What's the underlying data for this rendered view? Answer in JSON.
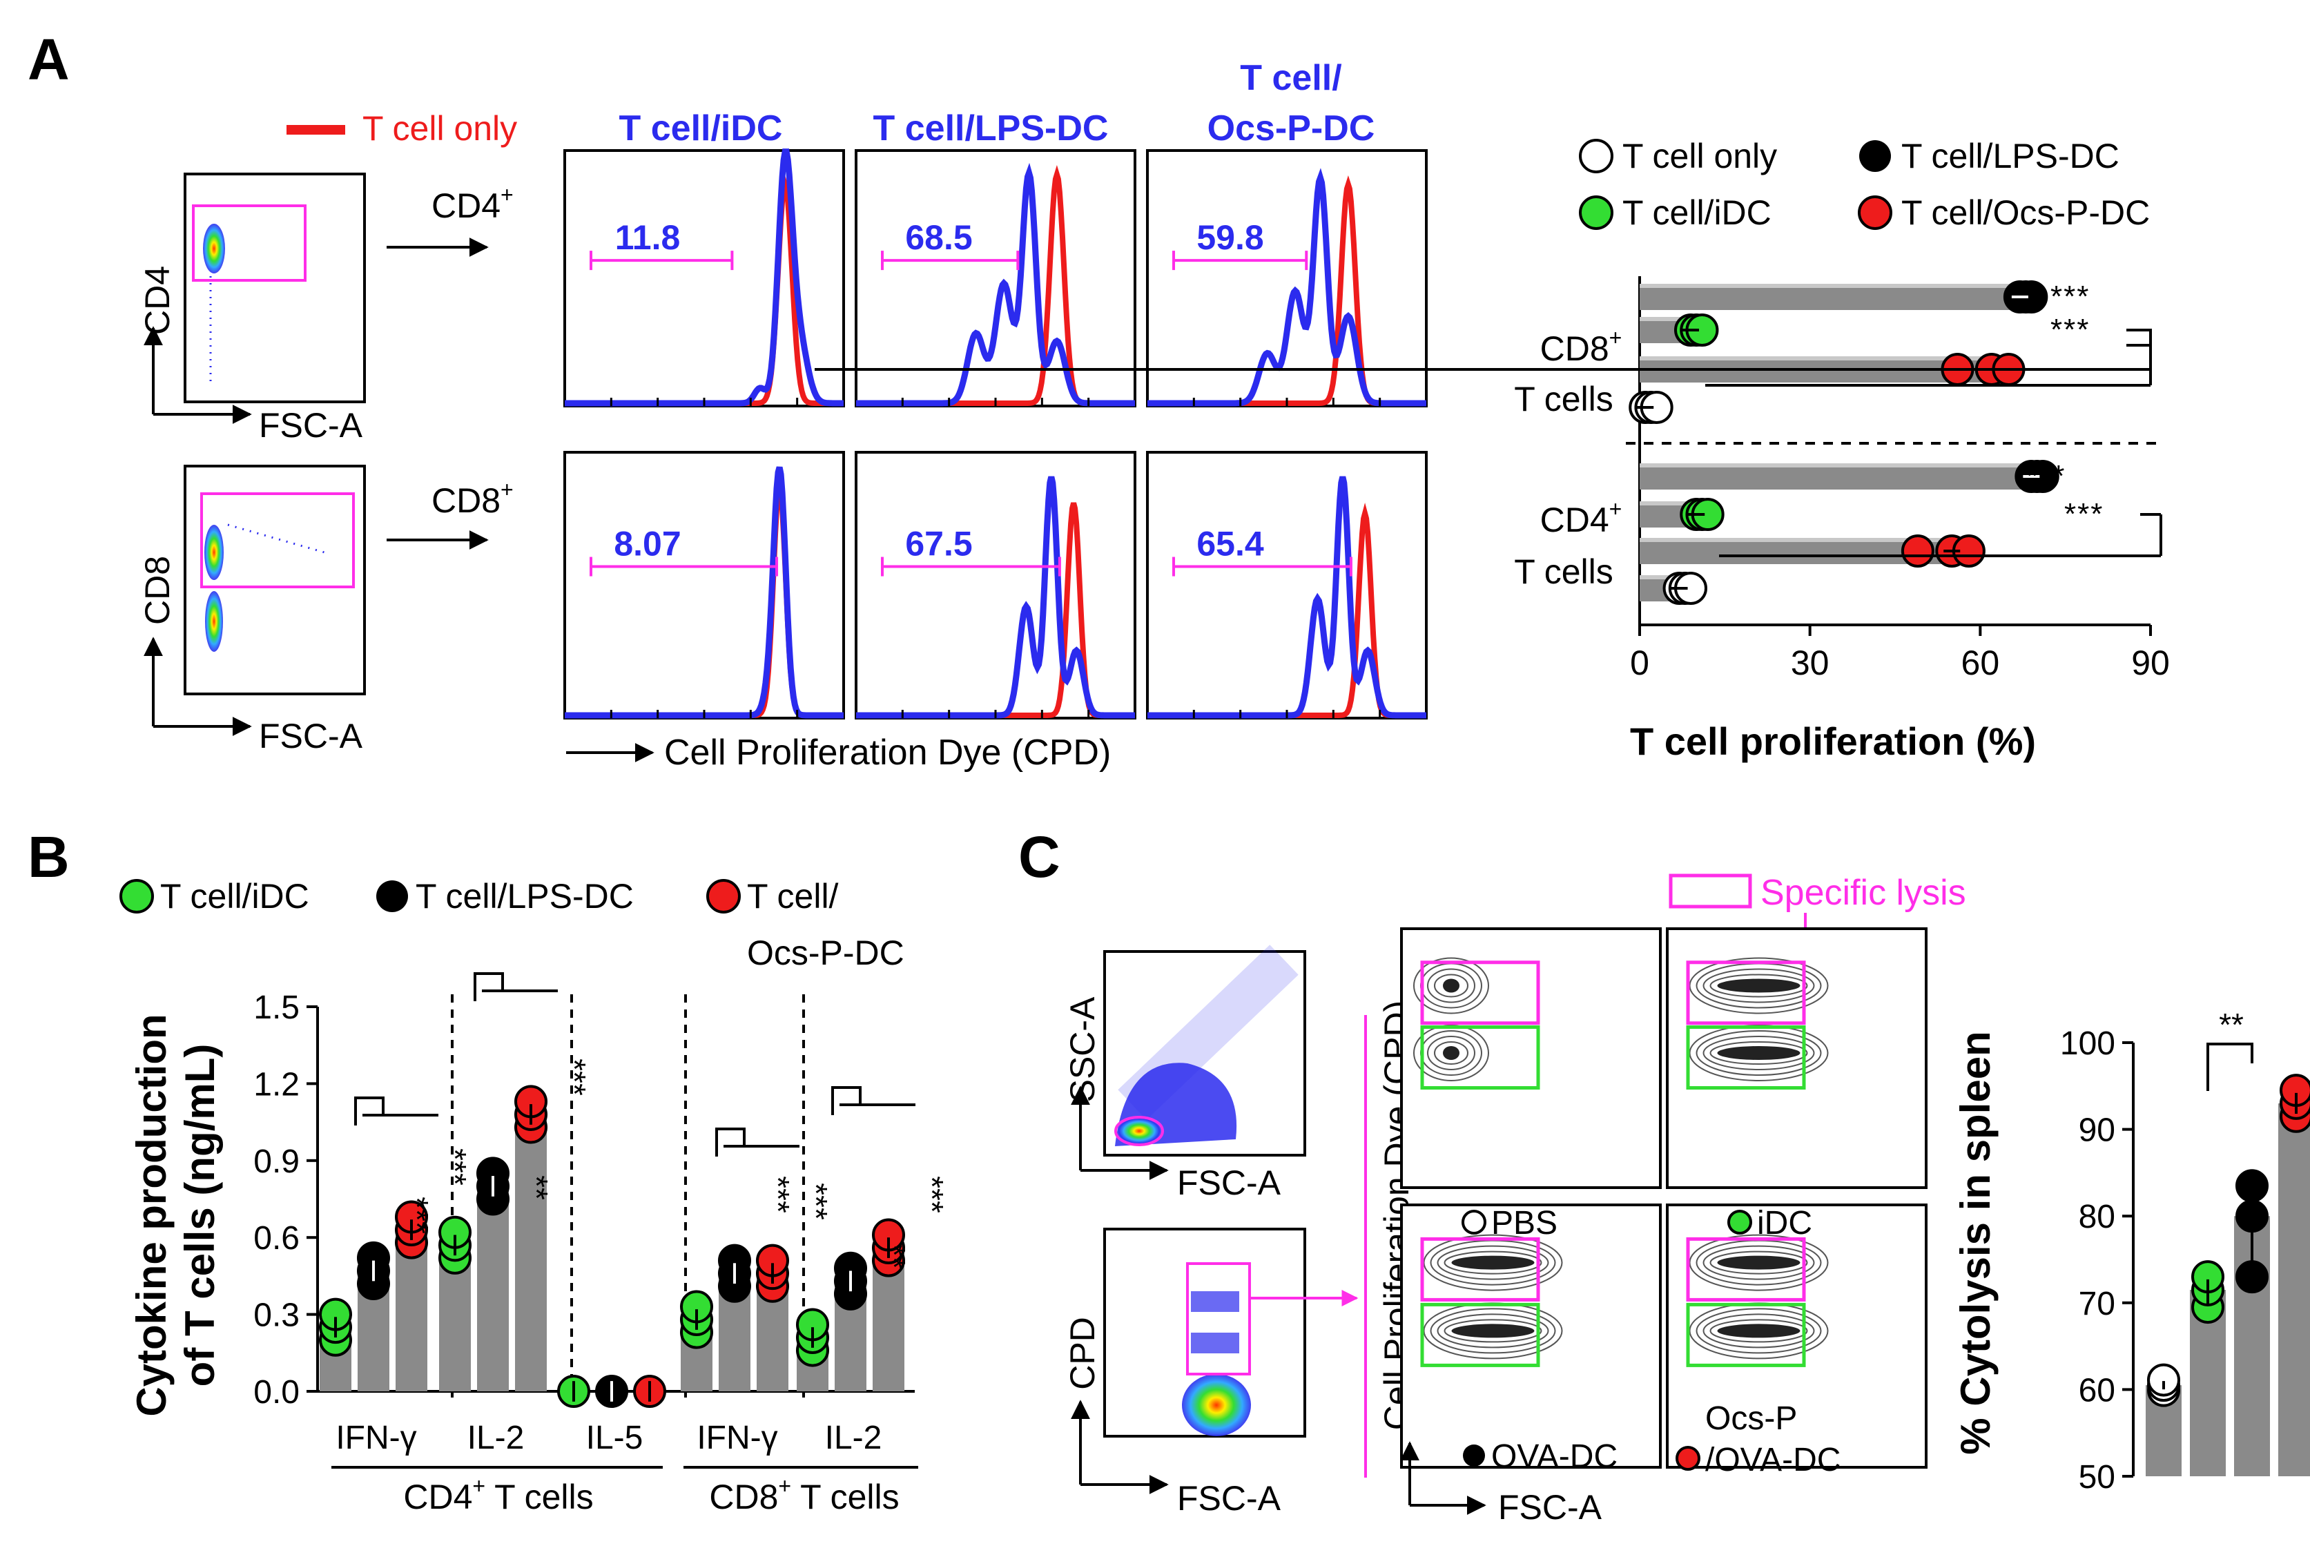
{
  "colors": {
    "blue": "#2b2bee",
    "red": "#ee1c1c",
    "magenta": "#ff2ee8",
    "green": "#33dd33",
    "black": "#000000",
    "bar_gray": "#8a8a8a",
    "bar_light": "#c8c8c8"
  },
  "panelA": {
    "letter": "A",
    "legend_red_line": "T cell only",
    "cd4_ylabel": "CD4",
    "cd8_ylabel": "CD8",
    "fsc_label": "FSC-A",
    "cd4plus_arrow": "CD4",
    "cd8plus_arrow": "CD8",
    "plus": "+",
    "col_headers": [
      "T cell/iDC",
      "T cell/LPS-DC",
      "T cell/",
      "Ocs-P-DC"
    ],
    "cd4_values": [
      "11.8",
      "68.5",
      "59.8"
    ],
    "cd8_values": [
      "8.07",
      "67.5",
      "65.4"
    ],
    "xaxis_label": "Cell Proliferation Dye (CPD)",
    "legend": [
      "T cell only",
      "T cell/LPS-DC",
      "T cell/iDC",
      "T cell/Ocs-P-DC"
    ],
    "group_cd8": [
      "CD8",
      "T cells"
    ],
    "group_cd4": [
      "CD4",
      "T cells"
    ],
    "sig": "***",
    "xlabel": "T cell proliferation (%)"
  },
  "panelB": {
    "letter": "B",
    "legend": [
      "T cell/iDC",
      "T cell/LPS-DC",
      "T cell/",
      "Ocs-P-DC"
    ],
    "ylabel1": "Cytokine production",
    "ylabel2": "of T cells (ng/mL)",
    "group_cd4": "CD4",
    "group_cd8": "CD8",
    "group_suffix": " T cells",
    "plus": "+"
  },
  "panelC": {
    "letter": "C",
    "ssc_label": "SSC-A",
    "fsc_label": "FSC-A",
    "cpd_label": "CPD",
    "cpd_full": "Cell Proliferation Dye (CPD)",
    "specific_lysis": "Specific lysis",
    "labels": [
      "PBS",
      "iDC",
      "OVA-DC",
      "Ocs-P",
      "/OVA-DC"
    ],
    "ylabel": "% Cytolysis in spleen",
    "sig": "**"
  },
  "chart_data": [
    {
      "type": "bar",
      "title": "T cell proliferation",
      "orientation": "horizontal",
      "xlabel": "T cell proliferation (%)",
      "xlim": [
        0,
        90
      ],
      "xticks": [
        0,
        30,
        60,
        90
      ],
      "groups": [
        "CD8+ T cells",
        "CD4+ T cells"
      ],
      "series": [
        {
          "name": "T cell only",
          "values": [
            1,
            7
          ]
        },
        {
          "name": "T cell/iDC",
          "values": [
            9,
            10
          ]
        },
        {
          "name": "T cell/LPS-DC",
          "values": [
            67,
            69
          ]
        },
        {
          "name": "T cell/Ocs-P-DC",
          "values": [
            62,
            55
          ]
        }
      ]
    },
    {
      "type": "bar",
      "title": "Cytokine production of T cells",
      "ylabel": "Cytokine production of T cells (ng/mL)",
      "ylim": [
        0,
        1.5
      ],
      "yticks": [
        "0.0",
        "0.3",
        "0.6",
        "0.9",
        "1.2",
        "1.5"
      ],
      "categories": [
        "IFN-γ",
        "IL-2",
        "IL-5",
        "IFN-γ",
        "IL-2"
      ],
      "category_groups": [
        "CD4+ T cells",
        "CD4+ T cells",
        "CD4+ T cells",
        "CD8+ T cells",
        "CD8+ T cells"
      ],
      "series": [
        {
          "name": "T cell/iDC",
          "values": [
            0.25,
            0.57,
            0.0,
            0.28,
            0.21
          ]
        },
        {
          "name": "T cell/LPS-DC",
          "values": [
            0.47,
            0.8,
            0.0,
            0.46,
            0.43
          ]
        },
        {
          "name": "T cell/Ocs-P-DC",
          "values": [
            0.63,
            1.08,
            0.0,
            0.46,
            0.56
          ]
        }
      ],
      "significance": [
        "***",
        "***",
        "**",
        "***",
        "",
        "***",
        "***",
        "**",
        "***"
      ]
    },
    {
      "type": "bar",
      "title": "% Cytolysis in spleen",
      "ylabel": "% Cytolysis in spleen",
      "ylim": [
        50,
        100
      ],
      "yticks": [
        50,
        60,
        70,
        80,
        90,
        100
      ],
      "categories": [
        "PBS",
        "iDC",
        "OVA-DC",
        "Ocs-P/OVA-DC"
      ],
      "values": [
        60.5,
        71.5,
        80,
        93
      ],
      "significance": "**"
    }
  ]
}
